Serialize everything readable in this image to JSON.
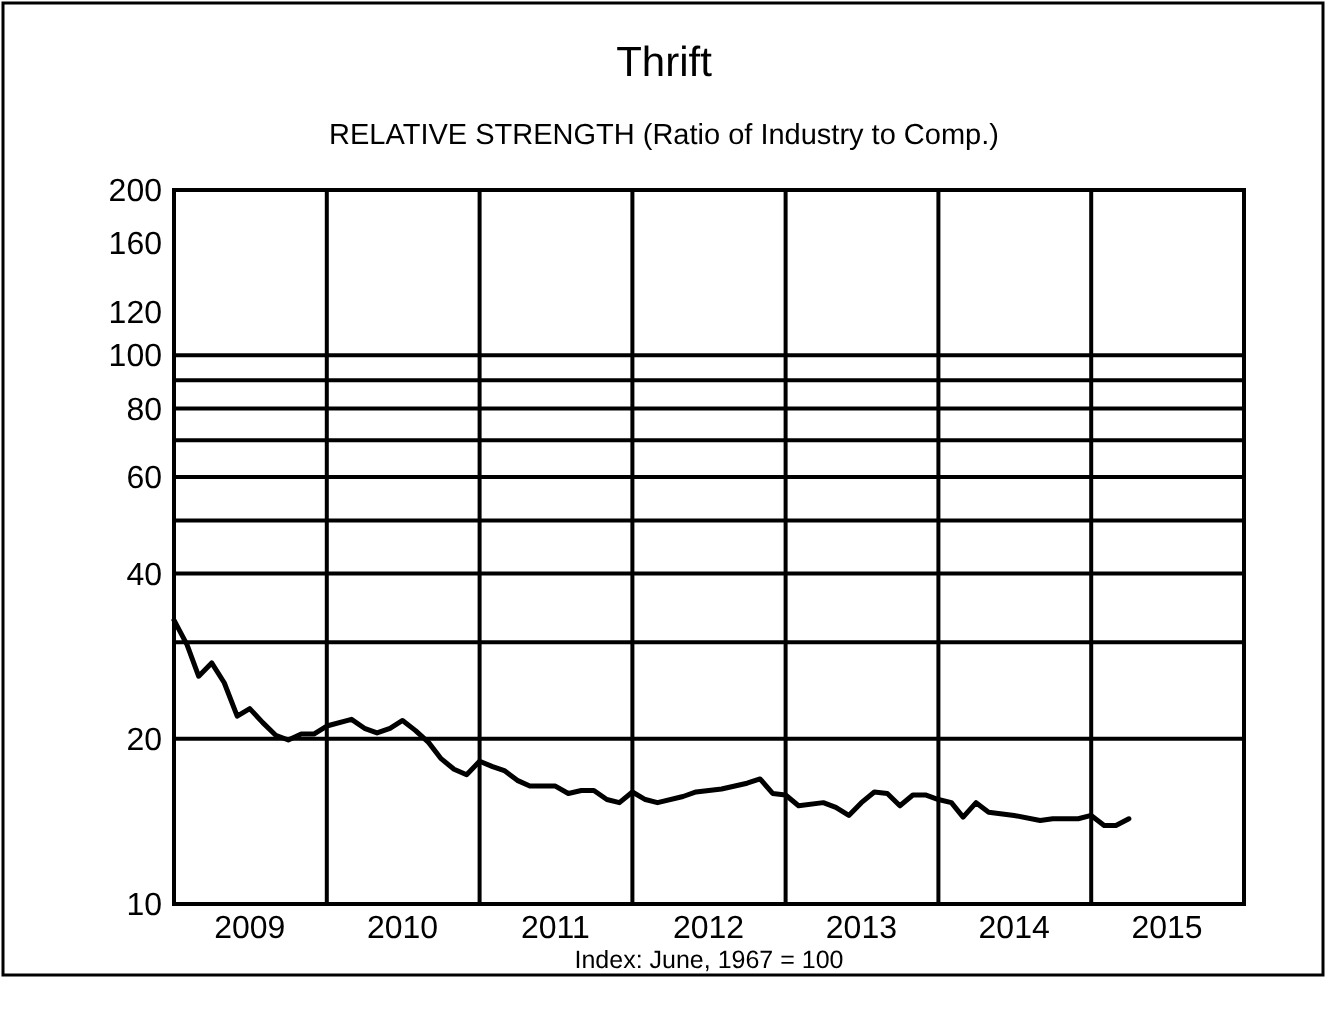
{
  "chart_data": {
    "type": "line",
    "title": "Thrift",
    "subtitle": "RELATIVE STRENGTH (Ratio of Industry to Comp.)",
    "annotations": [
      "Index: June, 1967 = 100"
    ],
    "log": "y",
    "grid": false,
    "line_style": "solid",
    "marker": "none",
    "xlim": [
      "2009-01-01",
      "2016-01-01"
    ],
    "xticks": [
      {
        "value": "2009-07-01",
        "label": "2009"
      },
      {
        "value": "2010-07-01",
        "label": "2010"
      },
      {
        "value": "2011-07-01",
        "label": "2011"
      },
      {
        "value": "2012-07-01",
        "label": "2012"
      },
      {
        "value": "2013-07-01",
        "label": "2013"
      },
      {
        "value": "2014-07-01",
        "label": "2014"
      },
      {
        "value": "2015-07-01",
        "label": "2015"
      }
    ],
    "ylim": [
      10,
      200
    ],
    "yticks": [
      10,
      20,
      40,
      60,
      80,
      100,
      120,
      160,
      200
    ],
    "ref_lines": [
      {
        "axis": "x",
        "value": "2010-01-01",
        "color": "#000000"
      },
      {
        "axis": "x",
        "value": "2011-01-01",
        "color": "#000000"
      },
      {
        "axis": "x",
        "value": "2012-01-01",
        "color": "#000000"
      },
      {
        "axis": "x",
        "value": "2013-01-01",
        "color": "#000000"
      },
      {
        "axis": "x",
        "value": "2014-01-01",
        "color": "#000000"
      },
      {
        "axis": "x",
        "value": "2015-01-01",
        "color": "#000000"
      },
      {
        "axis": "y",
        "value": 20,
        "color": "#000000"
      },
      {
        "axis": "y",
        "value": 30,
        "color": "#000000"
      },
      {
        "axis": "y",
        "value": 40,
        "color": "#000000"
      },
      {
        "axis": "y",
        "value": 50,
        "color": "#000000"
      },
      {
        "axis": "y",
        "value": 60,
        "color": "#000000"
      },
      {
        "axis": "y",
        "value": 70,
        "color": "#000000"
      },
      {
        "axis": "y",
        "value": 80,
        "color": "#000000"
      },
      {
        "axis": "y",
        "value": 90,
        "color": "#000000"
      },
      {
        "axis": "y",
        "value": 100,
        "color": "#000000"
      }
    ],
    "x": [
      "2009-01",
      "2009-02",
      "2009-03",
      "2009-04",
      "2009-05",
      "2009-06",
      "2009-07",
      "2009-08",
      "2009-09",
      "2009-10",
      "2009-11",
      "2009-12",
      "2010-01",
      "2010-03",
      "2010-04",
      "2010-05",
      "2010-06",
      "2010-07",
      "2010-08",
      "2010-09",
      "2010-10",
      "2010-11",
      "2010-12",
      "2011-01",
      "2011-02",
      "2011-03",
      "2011-04",
      "2011-05",
      "2011-07",
      "2011-08",
      "2011-09",
      "2011-10",
      "2011-11",
      "2011-12",
      "2012-01",
      "2012-02",
      "2012-03",
      "2012-05",
      "2012-06",
      "2012-08",
      "2012-10",
      "2012-11",
      "2012-12",
      "2013-01",
      "2013-02",
      "2013-04",
      "2013-05",
      "2013-06",
      "2013-07",
      "2013-08",
      "2013-09",
      "2013-10",
      "2013-11",
      "2013-12",
      "2014-01",
      "2014-02",
      "2014-03",
      "2014-04",
      "2014-05",
      "2014-07",
      "2014-09",
      "2014-10",
      "2014-12",
      "2015-01",
      "2015-02",
      "2015-03",
      "2015-04"
    ],
    "series": [
      {
        "color": "#000000",
        "values": [
          32.9,
          29.7,
          26.0,
          27.5,
          25.3,
          22.0,
          22.7,
          21.4,
          20.3,
          19.9,
          20.4,
          20.4,
          21.1,
          21.7,
          20.9,
          20.5,
          20.9,
          21.6,
          20.7,
          19.7,
          18.4,
          17.6,
          17.2,
          18.2,
          17.8,
          17.5,
          16.8,
          16.4,
          16.4,
          15.9,
          16.1,
          16.1,
          15.5,
          15.3,
          16.0,
          15.5,
          15.3,
          15.7,
          16.0,
          16.2,
          16.6,
          16.9,
          15.9,
          15.8,
          15.1,
          15.3,
          15.0,
          14.5,
          15.3,
          16.0,
          15.9,
          15.1,
          15.8,
          15.8,
          15.5,
          15.3,
          14.4,
          15.3,
          14.7,
          14.5,
          14.2,
          14.3,
          14.3,
          14.5,
          13.9,
          13.9,
          14.3
        ]
      }
    ]
  }
}
